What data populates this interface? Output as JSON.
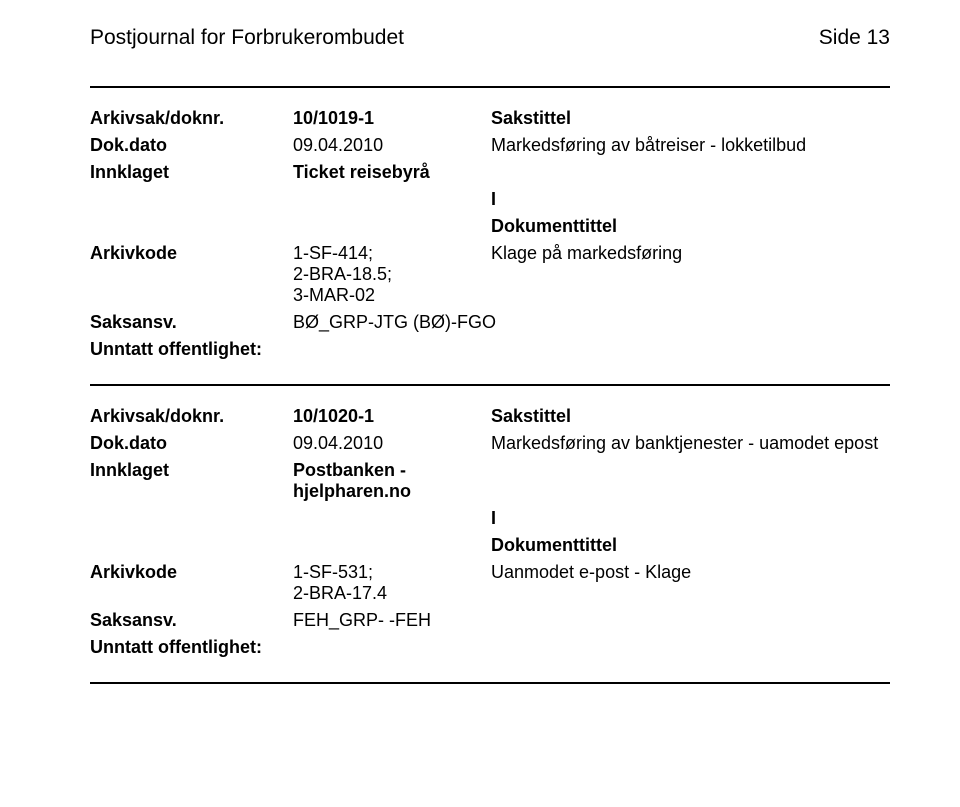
{
  "header": {
    "title": "Postjournal for Forbrukerombudet",
    "page_label": "Side 13"
  },
  "entries": [
    {
      "arkivsak_label": "Arkivsak/doknr.",
      "arkivsak_value": "10/1019-1",
      "sakstittel_label": "Sakstittel",
      "dokdato_label": "Dok.dato",
      "dokdato_value": "09.04.2010",
      "sakstittel_value": "Markedsføring av båtreiser - lokketilbud",
      "innklaget_label": "Innklaget",
      "innklaget_value": "Ticket reisebyrå",
      "i_label": "I",
      "doktittel_label": "Dokumenttittel",
      "arkivkode_label": "Arkivkode",
      "arkivkode_value": "1-SF-414;\n2-BRA-18.5;\n3-MAR-02",
      "doktittel_value": "Klage på markedsføring",
      "saksansv_label": "Saksansv.",
      "saksansv_value": "BØ_GRP-JTG (BØ)-FGO",
      "unntatt_label": "Unntatt offentlighet:"
    },
    {
      "arkivsak_label": "Arkivsak/doknr.",
      "arkivsak_value": "10/1020-1",
      "sakstittel_label": "Sakstittel",
      "dokdato_label": "Dok.dato",
      "dokdato_value": "09.04.2010",
      "sakstittel_value": "Markedsføring av banktjenester - uamodet epost",
      "innklaget_label": "Innklaget",
      "innklaget_value": "Postbanken - hjelpharen.no",
      "i_label": "I",
      "doktittel_label": "Dokumenttittel",
      "arkivkode_label": "Arkivkode",
      "arkivkode_value": "1-SF-531;\n2-BRA-17.4",
      "doktittel_value": "Uanmodet e-post - Klage",
      "saksansv_label": "Saksansv.",
      "saksansv_value": "FEH_GRP- -FEH",
      "unntatt_label": "Unntatt offentlighet:"
    }
  ]
}
